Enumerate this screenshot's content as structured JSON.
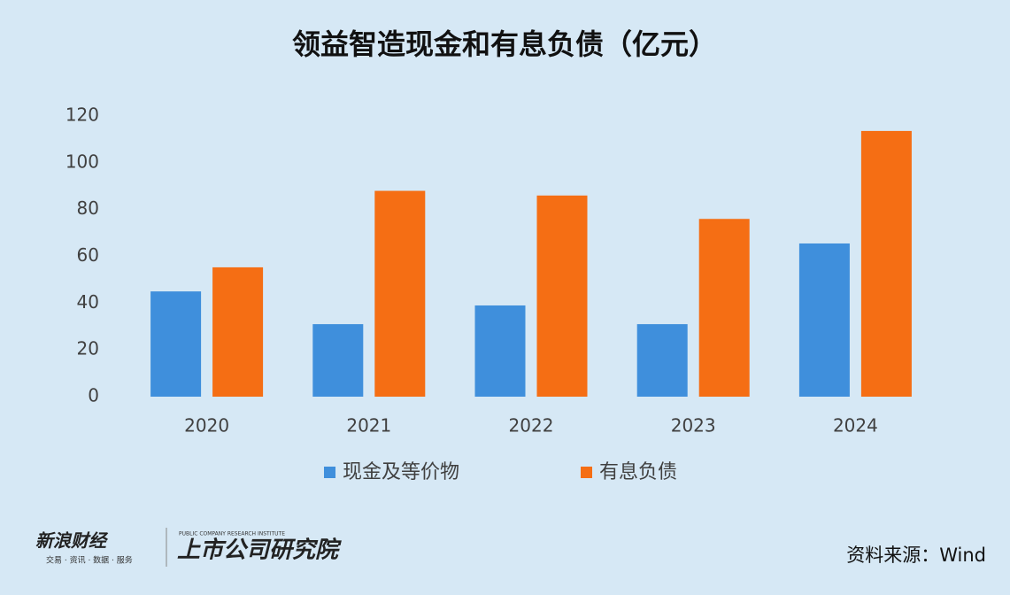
{
  "chart_data": {
    "type": "bar",
    "title": "领益智造现金和有息负债（亿元）",
    "categories": [
      "2020",
      "2021",
      "2022",
      "2023",
      "2024"
    ],
    "series": [
      {
        "name": "现金及等价物",
        "color": "#3f8fdc",
        "values": [
          45,
          31,
          39,
          31,
          65.5
        ]
      },
      {
        "name": "有息负债",
        "color": "#f56e14",
        "values": [
          55.3,
          88,
          86,
          76,
          113.6
        ]
      }
    ],
    "ylim": [
      0,
      120
    ],
    "yticks": [
      0,
      20,
      40,
      60,
      80,
      100,
      120
    ],
    "grid": false,
    "legend": "bottom"
  },
  "footer": {
    "brand": "新浪财经",
    "brand_sub": "交易 · 资讯 · 数据 · 服务",
    "institute": "上市公司研究院",
    "institute_sub": "PUBLIC COMPANY RESEARCH INSTITUTE",
    "source": "资料来源：Wind"
  }
}
